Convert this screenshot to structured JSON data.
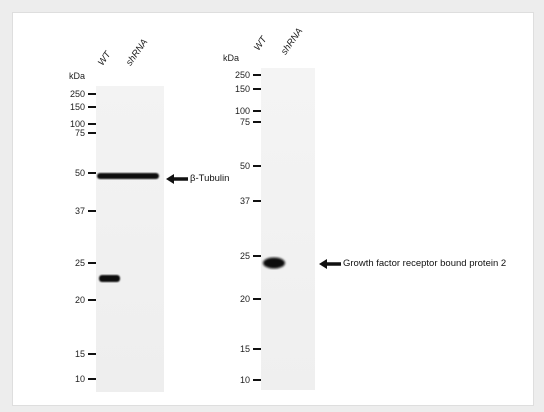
{
  "left_blot": {
    "unit_label": "kDa",
    "lanes": [
      "WT",
      "shRNA"
    ],
    "markers": [
      "250",
      "150",
      "100",
      "75",
      "50",
      "37",
      "25",
      "20",
      "15",
      "10"
    ],
    "band_annotation": "β-Tubulin"
  },
  "right_blot": {
    "unit_label": "kDa",
    "lanes": [
      "WT",
      "shRNA"
    ],
    "markers": [
      "250",
      "150",
      "100",
      "75",
      "50",
      "37",
      "25",
      "20",
      "15",
      "10"
    ],
    "band_annotation": "Growth factor receptor bound protein 2"
  },
  "colors": {
    "background": "#ededed",
    "card": "#ffffff",
    "membrane": "#f1f1f1",
    "band": "#0b0b0b"
  }
}
